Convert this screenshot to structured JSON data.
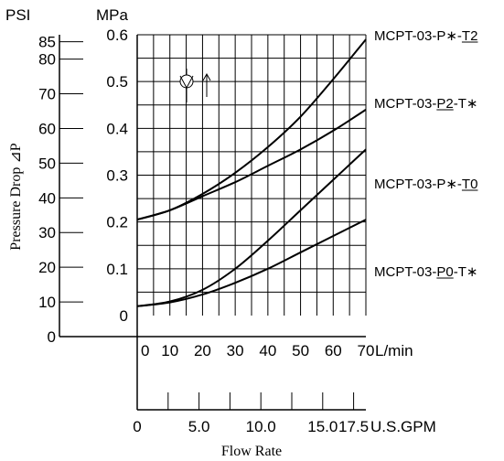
{
  "chart_data": {
    "type": "line",
    "title": "",
    "xlabel": "Flow Rate",
    "ylabel": "Pressure Drop ⊿P",
    "x_unit_primary": "L/min",
    "x_unit_secondary": "U.S.GPM",
    "y_unit_primary": "MPa",
    "y_unit_secondary": "PSI",
    "xlim": [
      0,
      70
    ],
    "ylim": [
      0,
      0.6
    ],
    "grid": true,
    "x_ticks_primary": [
      "0",
      "10",
      "20",
      "30",
      "40",
      "50",
      "60",
      "70"
    ],
    "x_ticks_secondary": [
      "0",
      "5.0",
      "10.0",
      "15.0",
      "17.5"
    ],
    "y_ticks_primary": [
      "0",
      "0.1",
      "0.2",
      "0.3",
      "0.4",
      "0.5",
      "0.6"
    ],
    "y_ticks_secondary": [
      "0",
      "10",
      "20",
      "30",
      "40",
      "50",
      "60",
      "70",
      "80",
      "85"
    ],
    "series": [
      {
        "name": "MCPT-03-P∗-T2",
        "label_parts": [
          "MCPT-03-P∗-",
          "T2",
          ""
        ],
        "underline": 1,
        "x": [
          0,
          10,
          20,
          30,
          40,
          50,
          60,
          70
        ],
        "y": [
          0.205,
          0.225,
          0.26,
          0.305,
          0.36,
          0.425,
          0.505,
          0.59
        ]
      },
      {
        "name": "MCPT-03-P2-T∗",
        "label_parts": [
          "MCPT-03-",
          "P2",
          "-T∗"
        ],
        "underline": 1,
        "x": [
          0,
          10,
          20,
          30,
          40,
          50,
          60,
          70
        ],
        "y": [
          0.205,
          0.225,
          0.255,
          0.285,
          0.32,
          0.355,
          0.395,
          0.44
        ]
      },
      {
        "name": "MCPT-03-P∗-T0",
        "label_parts": [
          "MCPT-03-P∗-",
          "T0",
          ""
        ],
        "underline": 1,
        "x": [
          0,
          10,
          20,
          30,
          40,
          50,
          60,
          70
        ],
        "y": [
          0.02,
          0.03,
          0.055,
          0.1,
          0.16,
          0.225,
          0.29,
          0.355
        ]
      },
      {
        "name": "MCPT-03-P0-T∗",
        "label_parts": [
          "MCPT-03-",
          "P0",
          "-T∗"
        ],
        "underline": 1,
        "x": [
          0,
          10,
          20,
          30,
          40,
          50,
          60,
          70
        ],
        "y": [
          0.02,
          0.028,
          0.045,
          0.07,
          0.1,
          0.135,
          0.17,
          0.205
        ]
      }
    ]
  }
}
